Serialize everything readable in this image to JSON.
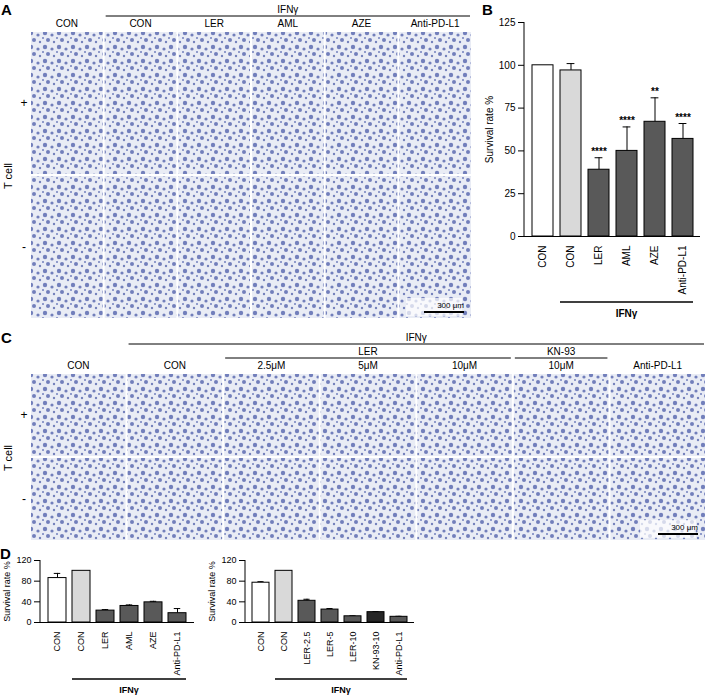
{
  "image_panels": [
    {
      "panel": "A",
      "columns": [
        "CON",
        {
          "label": "IFNγ",
          "columns": [
            "CON",
            "LER",
            "AML",
            "AZE",
            "Anti-PD-L1"
          ]
        }
      ],
      "row_title": "T cell",
      "rows": [
        "+",
        "-"
      ],
      "scale_bar": "300 μm"
    },
    {
      "panel": "C",
      "columns": [
        "CON",
        {
          "label": "IFNγ",
          "columns": [
            "CON",
            {
              "label": "LER",
              "columns": [
                "2.5μM",
                "5μM",
                "10μM"
              ]
            },
            {
              "label": "KN-93",
              "columns": [
                "10μM"
              ]
            },
            "Anti-PD-L1"
          ]
        }
      ],
      "row_title": "T cell",
      "rows": [
        "+",
        "-"
      ],
      "scale_bar": "300 μm"
    }
  ],
  "chart_data": [
    {
      "panel": "B",
      "type": "bar",
      "categories": [
        "CON",
        "CON",
        "LER",
        "AML",
        "AZE",
        "Anti-PD-L1"
      ],
      "values": [
        100,
        97,
        39,
        50,
        67,
        57
      ],
      "errors": [
        0,
        4,
        7,
        14,
        14,
        9
      ],
      "significance": [
        null,
        null,
        "****",
        "****",
        "**",
        "****"
      ],
      "colors": [
        "#ffffff",
        "#d9d9d9",
        "#595959",
        "#595959",
        "#595959",
        "#595959"
      ],
      "group_label": "IFNγ",
      "group_members": [
        false,
        true,
        true,
        true,
        true,
        true
      ],
      "y_label": "Survival rate %",
      "ylim": [
        0,
        125
      ],
      "yticks": [
        0,
        25,
        50,
        75,
        100,
        125
      ]
    },
    {
      "panel": "D",
      "type": "bar",
      "categories": [
        "CON",
        "CON",
        "LER",
        "AML",
        "AZE",
        "Anti-PD-L1"
      ],
      "values": [
        86,
        100,
        23,
        32,
        39,
        18
      ],
      "errors": [
        9,
        0,
        2,
        2,
        2,
        9
      ],
      "colors": [
        "#ffffff",
        "#d9d9d9",
        "#595959",
        "#595959",
        "#595959",
        "#595959"
      ],
      "group_label": "IFNγ",
      "group_members": [
        false,
        true,
        true,
        true,
        true,
        true
      ],
      "y_label": "Survival rate %",
      "ylim": [
        0,
        120
      ],
      "yticks": [
        0,
        40,
        80,
        120
      ]
    },
    {
      "type": "bar",
      "categories": [
        "CON",
        "CON",
        "LER-2.5",
        "LER-5",
        "LER-10",
        "KN-93-10",
        "Anti-PD-L1"
      ],
      "values": [
        77,
        100,
        42,
        25,
        12,
        20,
        11
      ],
      "errors": [
        2,
        0,
        3,
        2,
        1,
        1,
        1
      ],
      "colors": [
        "#ffffff",
        "#d9d9d9",
        "#595959",
        "#595959",
        "#595959",
        "#262626",
        "#595959"
      ],
      "group_label": "IFNγ",
      "group_members": [
        false,
        true,
        true,
        true,
        true,
        true,
        true
      ],
      "y_label": "Survival rate %",
      "ylim": [
        0,
        120
      ],
      "yticks": [
        0,
        40,
        80,
        120
      ]
    }
  ]
}
